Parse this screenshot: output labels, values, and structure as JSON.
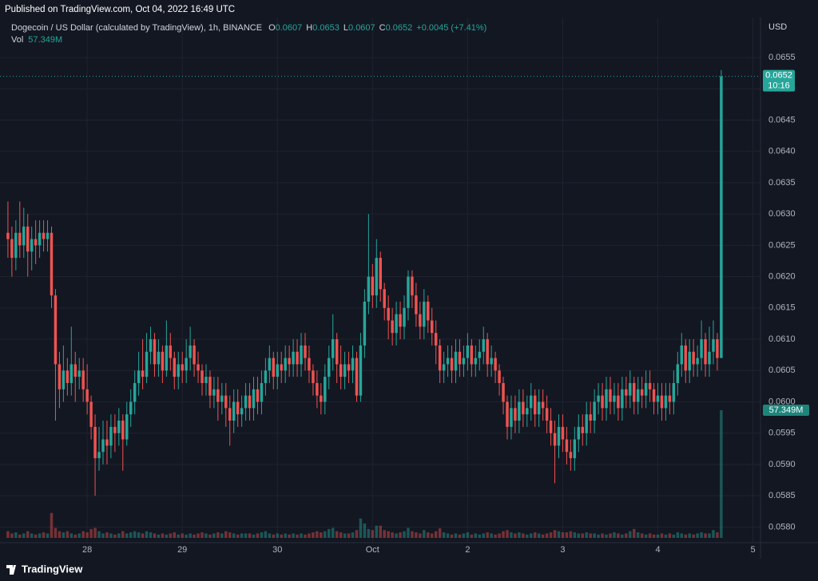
{
  "header": {
    "published": "Published on TradingView.com, Oct 04, 2022 16:49 UTC",
    "footer": "TradingView"
  },
  "chart_data": {
    "type": "candlestick",
    "title": "Dogecoin / US Dollar (calculated by TradingView), 1h, BINANCE",
    "ohlc_labels": [
      "O",
      "H",
      "L",
      "C"
    ],
    "change": "+0.0045 (+7.41%)",
    "currency": "USD",
    "countdown": "10:16",
    "up_color": "#26a69a",
    "down_color": "#ef5350",
    "grid": true,
    "xlim": [
      -2,
      189.9
    ],
    "ylim": [
      0.05775,
      0.0661
    ],
    "xticks": [
      {
        "value": 20,
        "label": "28"
      },
      {
        "value": 44,
        "label": "29"
      },
      {
        "value": 68,
        "label": "30"
      },
      {
        "value": 92,
        "label": "Oct"
      },
      {
        "value": 116,
        "label": "2"
      },
      {
        "value": 140,
        "label": "3"
      },
      {
        "value": 164,
        "label": "4"
      },
      {
        "value": 188,
        "label": "5"
      }
    ],
    "yticks": [
      {
        "value": 0.058,
        "label": "0.0580"
      },
      0.0585,
      {
        "value": 0.059,
        "label": "0.0590"
      },
      0.0595,
      {
        "value": 0.06,
        "label": "0.0600"
      },
      0.0605,
      {
        "value": 0.061,
        "label": "0.0610"
      },
      0.0615,
      {
        "value": 0.062,
        "label": "0.0620"
      },
      0.0625,
      {
        "value": 0.063,
        "label": "0.0630"
      },
      0.0635,
      {
        "value": 0.064,
        "label": "0.0640"
      },
      0.0645,
      {
        "value": 0.065,
        "label": "0.0650"
      },
      0.0655
    ],
    "candles": [
      [
        0.0627,
        0.0632,
        0.0623,
        0.0626
      ],
      [
        0.0626,
        0.0628,
        0.062,
        0.0623
      ],
      [
        0.0623,
        0.0629,
        0.0621,
        0.0627
      ],
      [
        0.0627,
        0.0632,
        0.0623,
        0.0625
      ],
      [
        0.0625,
        0.0631,
        0.0623,
        0.0628
      ],
      [
        0.0628,
        0.063,
        0.062,
        0.0624
      ],
      [
        0.0624,
        0.0628,
        0.0621,
        0.0626
      ],
      [
        0.0626,
        0.0629,
        0.0622,
        0.0625
      ],
      [
        0.0625,
        0.0629,
        0.0623,
        0.0627
      ],
      [
        0.0627,
        0.0629,
        0.0624,
        0.0626
      ],
      [
        0.0626,
        0.0629,
        0.0624,
        0.0627
      ],
      [
        0.0627,
        0.0628,
        0.0615,
        0.0617
      ],
      [
        0.0617,
        0.0618,
        0.0597,
        0.0606
      ],
      [
        0.0606,
        0.0608,
        0.0599,
        0.0602
      ],
      [
        0.0602,
        0.0609,
        0.06,
        0.0605
      ],
      [
        0.0605,
        0.0607,
        0.0601,
        0.0603
      ],
      [
        0.0603,
        0.0612,
        0.0601,
        0.0606
      ],
      [
        0.0606,
        0.0608,
        0.06,
        0.0604
      ],
      [
        0.0604,
        0.0607,
        0.0602,
        0.0605
      ],
      [
        0.0605,
        0.0607,
        0.06,
        0.0602
      ],
      [
        0.0602,
        0.0606,
        0.0598,
        0.06
      ],
      [
        0.06,
        0.0601,
        0.0594,
        0.0596
      ],
      [
        0.0596,
        0.0598,
        0.0585,
        0.0591
      ],
      [
        0.0591,
        0.0596,
        0.0589,
        0.0592
      ],
      [
        0.0592,
        0.0597,
        0.059,
        0.0594
      ],
      [
        0.0594,
        0.0597,
        0.059,
        0.0593
      ],
      [
        0.0593,
        0.0598,
        0.0591,
        0.0596
      ],
      [
        0.0596,
        0.0598,
        0.0592,
        0.0595
      ],
      [
        0.0595,
        0.0599,
        0.0593,
        0.0597
      ],
      [
        0.0597,
        0.0598,
        0.0589,
        0.0594
      ],
      [
        0.0594,
        0.06,
        0.0593,
        0.0598
      ],
      [
        0.0598,
        0.0602,
        0.0596,
        0.06
      ],
      [
        0.06,
        0.0605,
        0.0598,
        0.0603
      ],
      [
        0.0603,
        0.0608,
        0.0601,
        0.0605
      ],
      [
        0.0605,
        0.061,
        0.0602,
        0.0604
      ],
      [
        0.0604,
        0.0611,
        0.0603,
        0.0608
      ],
      [
        0.0608,
        0.0612,
        0.0606,
        0.061
      ],
      [
        0.061,
        0.0611,
        0.0604,
        0.0606
      ],
      [
        0.0606,
        0.061,
        0.0604,
        0.0608
      ],
      [
        0.0608,
        0.0609,
        0.0603,
        0.0605
      ],
      [
        0.0605,
        0.0613,
        0.0604,
        0.0609
      ],
      [
        0.0609,
        0.0611,
        0.0605,
        0.0607
      ],
      [
        0.0607,
        0.0608,
        0.0602,
        0.0604
      ],
      [
        0.0604,
        0.0608,
        0.0602,
        0.0606
      ],
      [
        0.0606,
        0.0608,
        0.0603,
        0.0605
      ],
      [
        0.0605,
        0.061,
        0.0603,
        0.0607
      ],
      [
        0.0607,
        0.0612,
        0.0605,
        0.0609
      ],
      [
        0.0609,
        0.061,
        0.0604,
        0.0606
      ],
      [
        0.0606,
        0.0608,
        0.0603,
        0.0605
      ],
      [
        0.0605,
        0.0606,
        0.0601,
        0.0603
      ],
      [
        0.0603,
        0.0606,
        0.0601,
        0.0604
      ],
      [
        0.0604,
        0.0605,
        0.0599,
        0.0601
      ],
      [
        0.0601,
        0.0604,
        0.0599,
        0.0602
      ],
      [
        0.0602,
        0.0604,
        0.0597,
        0.06
      ],
      [
        0.06,
        0.0603,
        0.0598,
        0.0601
      ],
      [
        0.0601,
        0.0603,
        0.0596,
        0.0599
      ],
      [
        0.0599,
        0.0601,
        0.0593,
        0.0597
      ],
      [
        0.0597,
        0.0602,
        0.0595,
        0.06
      ],
      [
        0.06,
        0.0602,
        0.0596,
        0.0598
      ],
      [
        0.0598,
        0.0601,
        0.0596,
        0.0599
      ],
      [
        0.0599,
        0.0603,
        0.0597,
        0.0601
      ],
      [
        0.0601,
        0.0603,
        0.0597,
        0.0599
      ],
      [
        0.0599,
        0.0604,
        0.0597,
        0.0602
      ],
      [
        0.0602,
        0.0604,
        0.0598,
        0.06
      ],
      [
        0.06,
        0.0605,
        0.0598,
        0.0603
      ],
      [
        0.0603,
        0.0607,
        0.0601,
        0.0605
      ],
      [
        0.0605,
        0.0609,
        0.0603,
        0.0607
      ],
      [
        0.0607,
        0.0608,
        0.0602,
        0.0604
      ],
      [
        0.0604,
        0.0608,
        0.0602,
        0.0606
      ],
      [
        0.0606,
        0.0608,
        0.0603,
        0.0605
      ],
      [
        0.0605,
        0.0609,
        0.0603,
        0.0607
      ],
      [
        0.0607,
        0.0609,
        0.0604,
        0.0606
      ],
      [
        0.0606,
        0.061,
        0.0604,
        0.0608
      ],
      [
        0.0608,
        0.061,
        0.0604,
        0.0606
      ],
      [
        0.0606,
        0.0611,
        0.0604,
        0.0609
      ],
      [
        0.0609,
        0.0611,
        0.0605,
        0.0607
      ],
      [
        0.0607,
        0.0609,
        0.0603,
        0.0605
      ],
      [
        0.0605,
        0.0606,
        0.0601,
        0.0603
      ],
      [
        0.0603,
        0.0605,
        0.0599,
        0.0601
      ],
      [
        0.0601,
        0.0603,
        0.0598,
        0.06
      ],
      [
        0.06,
        0.0606,
        0.0598,
        0.0604
      ],
      [
        0.0604,
        0.0609,
        0.0602,
        0.0607
      ],
      [
        0.0607,
        0.0614,
        0.0605,
        0.061
      ],
      [
        0.061,
        0.0611,
        0.0603,
        0.0606
      ],
      [
        0.0606,
        0.0609,
        0.0602,
        0.0604
      ],
      [
        0.0604,
        0.0608,
        0.0602,
        0.0606
      ],
      [
        0.0606,
        0.0608,
        0.0603,
        0.0605
      ],
      [
        0.0605,
        0.0609,
        0.0603,
        0.0607
      ],
      [
        0.0607,
        0.0608,
        0.06,
        0.0601
      ],
      [
        0.0601,
        0.0611,
        0.06,
        0.0609
      ],
      [
        0.0609,
        0.0618,
        0.0607,
        0.0616
      ],
      [
        0.0616,
        0.063,
        0.0614,
        0.062
      ],
      [
        0.062,
        0.0622,
        0.0615,
        0.0617
      ],
      [
        0.0617,
        0.0626,
        0.0615,
        0.0623
      ],
      [
        0.0623,
        0.0624,
        0.0616,
        0.0618
      ],
      [
        0.0618,
        0.0619,
        0.0613,
        0.0615
      ],
      [
        0.0615,
        0.0617,
        0.061,
        0.0613
      ],
      [
        0.0613,
        0.0615,
        0.0609,
        0.0611
      ],
      [
        0.0611,
        0.0616,
        0.0609,
        0.0614
      ],
      [
        0.0614,
        0.0616,
        0.061,
        0.0612
      ],
      [
        0.0612,
        0.0617,
        0.061,
        0.0615
      ],
      [
        0.0615,
        0.0621,
        0.0613,
        0.062
      ],
      [
        0.062,
        0.0621,
        0.0615,
        0.0617
      ],
      [
        0.0617,
        0.0619,
        0.0612,
        0.0614
      ],
      [
        0.0614,
        0.0616,
        0.061,
        0.0612
      ],
      [
        0.0612,
        0.0618,
        0.061,
        0.0616
      ],
      [
        0.0616,
        0.0617,
        0.0611,
        0.0613
      ],
      [
        0.0613,
        0.0615,
        0.0609,
        0.0611
      ],
      [
        0.0611,
        0.0613,
        0.0606,
        0.0609
      ],
      [
        0.0609,
        0.061,
        0.0603,
        0.0605
      ],
      [
        0.0605,
        0.0608,
        0.0603,
        0.0606
      ],
      [
        0.0606,
        0.0609,
        0.0604,
        0.0607
      ],
      [
        0.0607,
        0.0609,
        0.0603,
        0.0605
      ],
      [
        0.0605,
        0.061,
        0.0603,
        0.0608
      ],
      [
        0.0608,
        0.061,
        0.0604,
        0.0606
      ],
      [
        0.0606,
        0.0609,
        0.0604,
        0.0607
      ],
      [
        0.0607,
        0.0611,
        0.0605,
        0.0609
      ],
      [
        0.0609,
        0.061,
        0.0604,
        0.0606
      ],
      [
        0.0606,
        0.0609,
        0.0604,
        0.0607
      ],
      [
        0.0607,
        0.061,
        0.0605,
        0.0608
      ],
      [
        0.0608,
        0.0612,
        0.0606,
        0.061
      ],
      [
        0.061,
        0.0611,
        0.0604,
        0.0606
      ],
      [
        0.0606,
        0.0609,
        0.0604,
        0.0607
      ],
      [
        0.0607,
        0.0608,
        0.0603,
        0.0605
      ],
      [
        0.0605,
        0.0606,
        0.0601,
        0.0603
      ],
      [
        0.0603,
        0.0604,
        0.0598,
        0.06
      ],
      [
        0.06,
        0.0601,
        0.0594,
        0.0596
      ],
      [
        0.0596,
        0.0601,
        0.0594,
        0.0599
      ],
      [
        0.0599,
        0.0601,
        0.0595,
        0.0597
      ],
      [
        0.0597,
        0.0602,
        0.0595,
        0.06
      ],
      [
        0.06,
        0.0602,
        0.0596,
        0.0598
      ],
      [
        0.0598,
        0.0601,
        0.0596,
        0.0599
      ],
      [
        0.0599,
        0.0603,
        0.0597,
        0.0601
      ],
      [
        0.0601,
        0.0602,
        0.0596,
        0.0598
      ],
      [
        0.0598,
        0.0602,
        0.0596,
        0.06
      ],
      [
        0.06,
        0.0602,
        0.0597,
        0.0599
      ],
      [
        0.0599,
        0.0601,
        0.0595,
        0.0597
      ],
      [
        0.0597,
        0.0599,
        0.0593,
        0.0595
      ],
      [
        0.0595,
        0.0597,
        0.0587,
        0.0593
      ],
      [
        0.0593,
        0.0598,
        0.0591,
        0.0596
      ],
      [
        0.0596,
        0.0598,
        0.0592,
        0.0594
      ],
      [
        0.0594,
        0.0596,
        0.059,
        0.0592
      ],
      [
        0.0592,
        0.0594,
        0.0589,
        0.0591
      ],
      [
        0.0591,
        0.0596,
        0.0589,
        0.0594
      ],
      [
        0.0594,
        0.0598,
        0.0592,
        0.0596
      ],
      [
        0.0596,
        0.0598,
        0.0593,
        0.0595
      ],
      [
        0.0595,
        0.06,
        0.0593,
        0.0598
      ],
      [
        0.0598,
        0.06,
        0.0595,
        0.0597
      ],
      [
        0.0597,
        0.0602,
        0.0595,
        0.06
      ],
      [
        0.06,
        0.0603,
        0.0598,
        0.0601
      ],
      [
        0.0601,
        0.0603,
        0.0597,
        0.0599
      ],
      [
        0.0599,
        0.0604,
        0.0597,
        0.0602
      ],
      [
        0.0602,
        0.0604,
        0.0598,
        0.06
      ],
      [
        0.06,
        0.0603,
        0.0598,
        0.0601
      ],
      [
        0.0601,
        0.0603,
        0.0597,
        0.0599
      ],
      [
        0.0599,
        0.0604,
        0.0597,
        0.0602
      ],
      [
        0.0602,
        0.0604,
        0.0599,
        0.0601
      ],
      [
        0.0601,
        0.0605,
        0.0599,
        0.0603
      ],
      [
        0.0603,
        0.0604,
        0.0598,
        0.06
      ],
      [
        0.06,
        0.0604,
        0.0598,
        0.0602
      ],
      [
        0.0602,
        0.0604,
        0.0599,
        0.0601
      ],
      [
        0.0601,
        0.0605,
        0.0599,
        0.0603
      ],
      [
        0.0603,
        0.0605,
        0.06,
        0.0602
      ],
      [
        0.0602,
        0.0603,
        0.0598,
        0.06
      ],
      [
        0.06,
        0.0603,
        0.0598,
        0.0601
      ],
      [
        0.0601,
        0.0603,
        0.0597,
        0.0599
      ],
      [
        0.0599,
        0.0603,
        0.0597,
        0.0601
      ],
      [
        0.0601,
        0.0603,
        0.0598,
        0.06
      ],
      [
        0.06,
        0.0605,
        0.0598,
        0.0603
      ],
      [
        0.0603,
        0.0608,
        0.0601,
        0.0606
      ],
      [
        0.0606,
        0.0611,
        0.0604,
        0.0609
      ],
      [
        0.0609,
        0.061,
        0.0603,
        0.0605
      ],
      [
        0.0605,
        0.061,
        0.0603,
        0.0608
      ],
      [
        0.0608,
        0.061,
        0.0604,
        0.0606
      ],
      [
        0.0606,
        0.0609,
        0.0604,
        0.0607
      ],
      [
        0.0607,
        0.0613,
        0.0605,
        0.061
      ],
      [
        0.061,
        0.0611,
        0.0604,
        0.0606
      ],
      [
        0.0606,
        0.0612,
        0.0604,
        0.0608
      ],
      [
        0.0608,
        0.0613,
        0.0606,
        0.061
      ],
      [
        0.061,
        0.0611,
        0.0605,
        0.0607
      ],
      [
        0.0607,
        0.0653,
        0.0607,
        0.0652
      ]
    ],
    "volume": {
      "name": "Vol",
      "last_label": "57.349M",
      "values": [
        3,
        2,
        2.5,
        1.5,
        2,
        3,
        2,
        1.5,
        2,
        2.5,
        2,
        11.2,
        4.5,
        3,
        2.5,
        3,
        2,
        1.5,
        2,
        3,
        2.5,
        4,
        4.5,
        3,
        2,
        2.5,
        2,
        1.5,
        2,
        3,
        2,
        2.5,
        3,
        2.5,
        2,
        3,
        2.5,
        2,
        1.5,
        2,
        1.5,
        2,
        2.5,
        1.5,
        2,
        1.5,
        2,
        1.5,
        2,
        2.5,
        2,
        1.5,
        2,
        2.5,
        2,
        3,
        2.5,
        2,
        1.5,
        2,
        2,
        2,
        1.5,
        2,
        2.5,
        3,
        2,
        1.5,
        2,
        1.5,
        2,
        1.5,
        2,
        1.5,
        2,
        1.5,
        2,
        2.5,
        3,
        2.5,
        3,
        4,
        4.5,
        3,
        2.5,
        2,
        2,
        2.5,
        3.5,
        8.7,
        6.5,
        4,
        3.5,
        5.5,
        5.5,
        3.5,
        3,
        2.5,
        2,
        2.5,
        3,
        4.5,
        3,
        2.5,
        2,
        3.5,
        2.5,
        2,
        3,
        4.3,
        2.5,
        2,
        1.5,
        2,
        1.5,
        2,
        2.5,
        1.5,
        2,
        1.5,
        2,
        2.5,
        2,
        1.5,
        2,
        3,
        3.5,
        2.5,
        2,
        2.5,
        2,
        1.5,
        2,
        2.5,
        2,
        1.5,
        2,
        2.5,
        3.5,
        3,
        2.5,
        2.5,
        3,
        2.5,
        2,
        2,
        2.5,
        2,
        2,
        1.5,
        2,
        1.5,
        2,
        2.5,
        2,
        1.5,
        2,
        3,
        4,
        2.5,
        2,
        1.5,
        2,
        1.5,
        1.5,
        2,
        1.5,
        2,
        1.5,
        2.5,
        2,
        1.5,
        2,
        1.5,
        2,
        2.5,
        2,
        2,
        3.5,
        2.5,
        57.349
      ]
    }
  }
}
